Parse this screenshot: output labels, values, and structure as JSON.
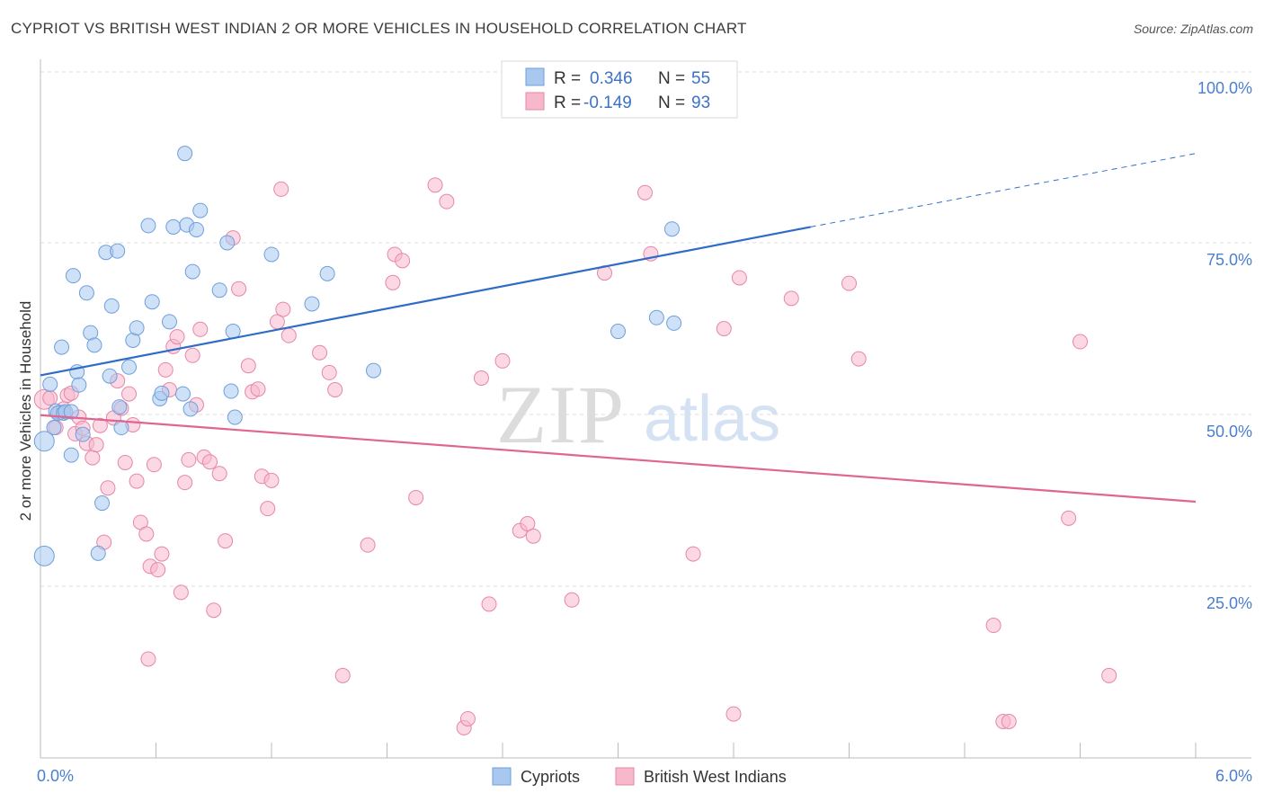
{
  "title": "CYPRIOT VS BRITISH WEST INDIAN 2 OR MORE VEHICLES IN HOUSEHOLD CORRELATION CHART",
  "source": "Source: ZipAtlas.com",
  "watermark": {
    "zip": "ZIP",
    "atlas": "atlas"
  },
  "legend": {
    "rows": [
      {
        "r_label": "R =",
        "r_value": "0.346",
        "n_label": "N =",
        "n_value": "55",
        "color": "#a8c8f0"
      },
      {
        "r_label": "R =",
        "r_value": "-0.149",
        "n_label": "N =",
        "n_value": "93",
        "color": "#f7b8cc"
      }
    ]
  },
  "bottom_legend": [
    {
      "label": "Cypriots",
      "color": "#a8c8f0"
    },
    {
      "label": "British West Indians",
      "color": "#f7b8cc"
    }
  ],
  "chart_data": {
    "type": "scatter",
    "title": "CYPRIOT VS BRITISH WEST INDIAN 2 OR MORE VEHICLES IN HOUSEHOLD CORRELATION CHART",
    "xlabel": "",
    "ylabel": "2 or more Vehicles in Household",
    "xlim": [
      0,
      6
    ],
    "ylim": [
      0,
      100
    ],
    "x_tick_labels": [
      "0.0%",
      "6.0%"
    ],
    "y_tick_labels": [
      "25.0%",
      "50.0%",
      "75.0%",
      "100.0%"
    ],
    "y_ticks": [
      25,
      50,
      75,
      100
    ],
    "grid": "horizontal dashed",
    "colors": {
      "cypriots": "#a8c8f0",
      "cypriots_stroke": "#6e9fdc",
      "cypriots_line": "#2f6cc8",
      "bwi": "#f7b8cc",
      "bwi_stroke": "#e687a6",
      "bwi_line": "#e0668f"
    },
    "series": [
      {
        "name": "Cypriots",
        "trend": {
          "x0": 0.0,
          "y0": 55.7,
          "x1": 4.0,
          "y1": 77.3,
          "x_dash_end": 6.0,
          "y_dash_end": 88.0
        },
        "points": [
          [
            0.02,
            46.1
          ],
          [
            0.05,
            54.4
          ],
          [
            0.07,
            48.1
          ],
          [
            0.08,
            50.5
          ],
          [
            0.09,
            50.2
          ],
          [
            0.11,
            59.8
          ],
          [
            0.12,
            50.2
          ],
          [
            0.13,
            50.4
          ],
          [
            0.16,
            44.1
          ],
          [
            0.17,
            70.2
          ],
          [
            0.19,
            56.2
          ],
          [
            0.2,
            54.3
          ],
          [
            0.22,
            47.1
          ],
          [
            0.24,
            67.7
          ],
          [
            0.26,
            61.9
          ],
          [
            0.28,
            60.1
          ],
          [
            0.3,
            29.8
          ],
          [
            0.32,
            37.1
          ],
          [
            0.34,
            73.6
          ],
          [
            0.36,
            55.6
          ],
          [
            0.37,
            65.8
          ],
          [
            0.4,
            73.8
          ],
          [
            0.41,
            51.1
          ],
          [
            0.42,
            48.1
          ],
          [
            0.46,
            56.9
          ],
          [
            0.48,
            60.8
          ],
          [
            0.5,
            62.6
          ],
          [
            0.56,
            77.5
          ],
          [
            0.58,
            66.4
          ],
          [
            0.62,
            52.3
          ],
          [
            0.63,
            53.1
          ],
          [
            0.67,
            63.5
          ],
          [
            0.69,
            77.3
          ],
          [
            0.74,
            53.0
          ],
          [
            0.75,
            88.0
          ],
          [
            0.76,
            77.6
          ],
          [
            0.78,
            50.8
          ],
          [
            0.79,
            70.8
          ],
          [
            0.81,
            76.9
          ],
          [
            0.83,
            79.7
          ],
          [
            0.93,
            68.1
          ],
          [
            0.97,
            75.0
          ],
          [
            0.99,
            53.4
          ],
          [
            1.0,
            62.1
          ],
          [
            1.01,
            49.6
          ],
          [
            1.2,
            73.3
          ],
          [
            1.41,
            66.1
          ],
          [
            1.49,
            70.5
          ],
          [
            1.73,
            56.4
          ],
          [
            3.0,
            62.1
          ],
          [
            3.2,
            64.1
          ],
          [
            3.28,
            77.0
          ],
          [
            3.29,
            63.3
          ],
          [
            0.02,
            29.4
          ],
          [
            0.16,
            50.4
          ]
        ]
      },
      {
        "name": "British West Indians",
        "trend": {
          "x0": 0.0,
          "y0": 49.9,
          "x1": 6.0,
          "y1": 37.3
        },
        "points": [
          [
            0.02,
            52.2
          ],
          [
            0.05,
            52.4
          ],
          [
            0.08,
            48.1
          ],
          [
            0.1,
            50.3
          ],
          [
            0.12,
            50.8
          ],
          [
            0.14,
            52.8
          ],
          [
            0.16,
            53.1
          ],
          [
            0.18,
            47.2
          ],
          [
            0.2,
            49.6
          ],
          [
            0.22,
            48.0
          ],
          [
            0.24,
            45.8
          ],
          [
            0.27,
            43.7
          ],
          [
            0.29,
            45.6
          ],
          [
            0.31,
            48.4
          ],
          [
            0.33,
            31.4
          ],
          [
            0.35,
            39.3
          ],
          [
            0.38,
            49.5
          ],
          [
            0.4,
            54.9
          ],
          [
            0.42,
            50.9
          ],
          [
            0.44,
            43.0
          ],
          [
            0.46,
            53.0
          ],
          [
            0.48,
            48.5
          ],
          [
            0.5,
            40.3
          ],
          [
            0.52,
            34.3
          ],
          [
            0.55,
            32.6
          ],
          [
            0.57,
            27.9
          ],
          [
            0.59,
            42.7
          ],
          [
            0.61,
            27.4
          ],
          [
            0.63,
            29.7
          ],
          [
            0.65,
            56.5
          ],
          [
            0.67,
            53.6
          ],
          [
            0.69,
            59.9
          ],
          [
            0.71,
            61.3
          ],
          [
            0.73,
            24.1
          ],
          [
            0.75,
            40.1
          ],
          [
            0.77,
            43.4
          ],
          [
            0.79,
            58.6
          ],
          [
            0.81,
            51.4
          ],
          [
            0.83,
            62.4
          ],
          [
            0.85,
            43.8
          ],
          [
            0.88,
            43.1
          ],
          [
            0.9,
            21.5
          ],
          [
            0.93,
            41.4
          ],
          [
            0.96,
            31.6
          ],
          [
            1.0,
            75.7
          ],
          [
            1.03,
            68.3
          ],
          [
            1.08,
            57.1
          ],
          [
            1.1,
            53.3
          ],
          [
            1.13,
            53.7
          ],
          [
            1.15,
            41.0
          ],
          [
            1.18,
            36.3
          ],
          [
            1.2,
            40.4
          ],
          [
            1.23,
            63.5
          ],
          [
            1.25,
            82.8
          ],
          [
            1.26,
            65.3
          ],
          [
            1.29,
            61.5
          ],
          [
            1.45,
            59.0
          ],
          [
            1.5,
            56.1
          ],
          [
            1.53,
            53.6
          ],
          [
            1.57,
            12.0
          ],
          [
            1.7,
            31.0
          ],
          [
            1.83,
            69.2
          ],
          [
            1.84,
            73.3
          ],
          [
            1.88,
            72.4
          ],
          [
            1.95,
            37.9
          ],
          [
            2.05,
            83.4
          ],
          [
            2.11,
            81.0
          ],
          [
            2.2,
            4.4
          ],
          [
            2.22,
            5.7
          ],
          [
            2.29,
            55.3
          ],
          [
            2.33,
            22.4
          ],
          [
            2.4,
            57.8
          ],
          [
            2.49,
            33.1
          ],
          [
            2.53,
            34.1
          ],
          [
            2.56,
            32.3
          ],
          [
            2.76,
            23.0
          ],
          [
            2.93,
            70.6
          ],
          [
            3.14,
            82.3
          ],
          [
            3.17,
            73.4
          ],
          [
            3.39,
            29.7
          ],
          [
            3.55,
            62.5
          ],
          [
            3.6,
            6.4
          ],
          [
            3.63,
            69.9
          ],
          [
            3.9,
            66.9
          ],
          [
            4.2,
            69.1
          ],
          [
            4.25,
            58.1
          ],
          [
            4.95,
            19.3
          ],
          [
            5.0,
            5.3
          ],
          [
            5.03,
            5.3
          ],
          [
            5.34,
            34.9
          ],
          [
            5.4,
            60.6
          ],
          [
            5.55,
            12.0
          ],
          [
            0.56,
            14.4
          ]
        ]
      }
    ]
  }
}
